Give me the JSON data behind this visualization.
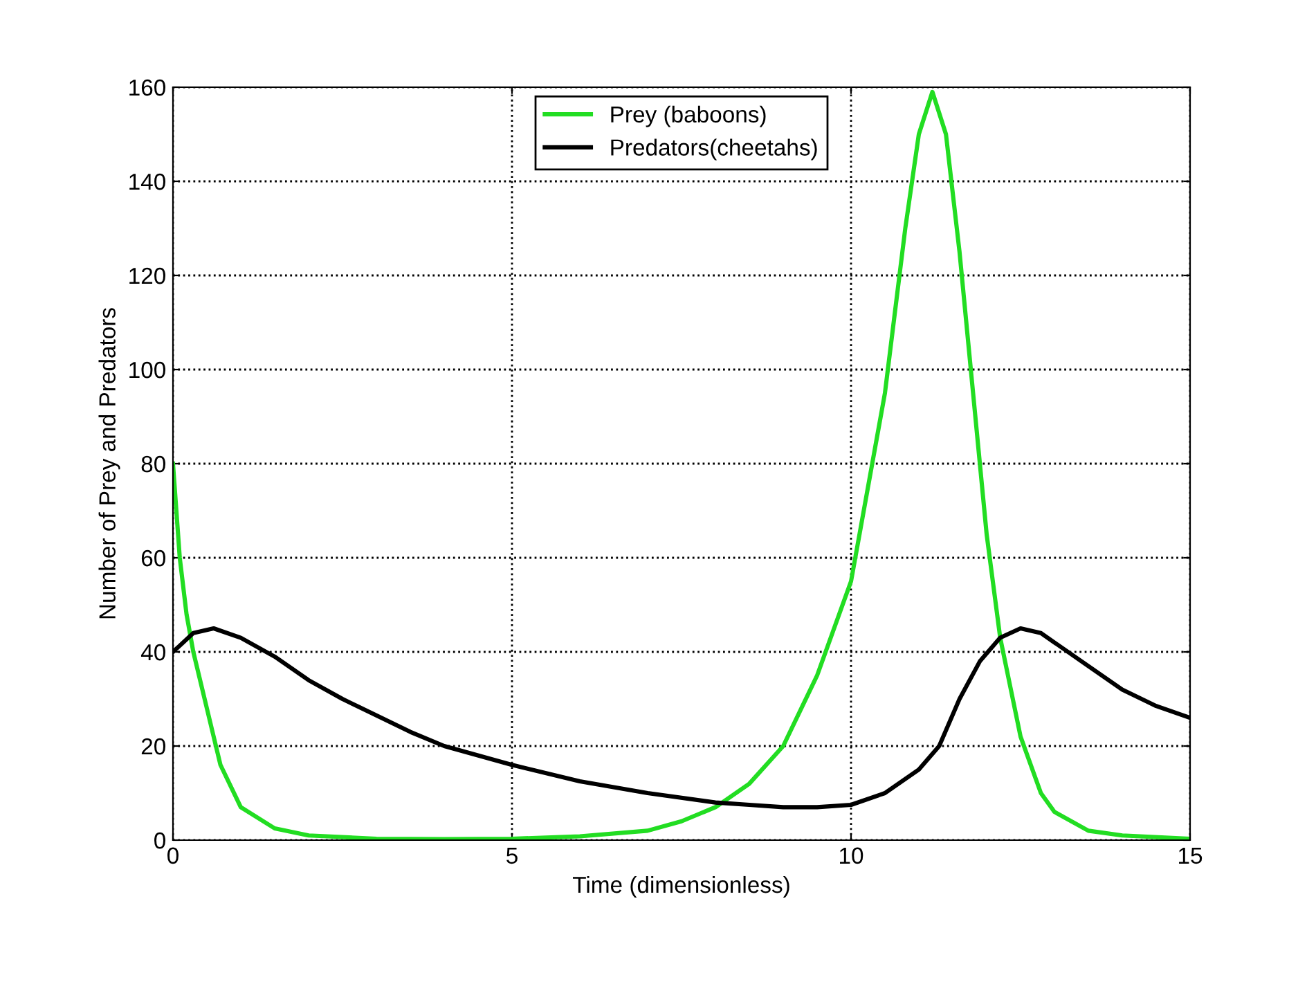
{
  "chart_data": {
    "type": "line",
    "xlabel": "Time (dimensionless)",
    "ylabel": "Number of Prey and Predators",
    "xlim": [
      0,
      15
    ],
    "ylim": [
      0,
      160
    ],
    "xticks": [
      0,
      5,
      10,
      15
    ],
    "yticks": [
      0,
      20,
      40,
      60,
      80,
      100,
      120,
      140,
      160
    ],
    "grid": true,
    "legend": "top",
    "line_style": "solid",
    "marker": "none",
    "series": [
      {
        "name": "Prey (baboons)",
        "color": "#22dd22",
        "x": [
          0,
          0.1,
          0.2,
          0.3,
          0.5,
          0.7,
          1,
          1.5,
          2,
          3,
          4,
          5,
          6,
          7,
          7.5,
          8,
          8.5,
          9,
          9.5,
          10,
          10.5,
          10.8,
          11,
          11.2,
          11.4,
          11.6,
          11.8,
          12,
          12.2,
          12.5,
          12.8,
          13,
          13.5,
          14,
          15
        ],
        "values": [
          80,
          60,
          48,
          40,
          28,
          16,
          7,
          2.5,
          1,
          0.3,
          0.2,
          0.3,
          0.8,
          2,
          4,
          7,
          12,
          20,
          35,
          55,
          95,
          130,
          150,
          159,
          150,
          125,
          95,
          65,
          43,
          22,
          10,
          6,
          2,
          1,
          0.3
        ]
      },
      {
        "name": "Predators(cheetahs)",
        "color": "#000000",
        "x": [
          0,
          0.3,
          0.6,
          1,
          1.5,
          2,
          2.5,
          3,
          3.5,
          4,
          5,
          6,
          7,
          8,
          8.5,
          9,
          9.5,
          10,
          10.5,
          11,
          11.3,
          11.6,
          11.9,
          12.2,
          12.5,
          12.8,
          13,
          13.5,
          14,
          14.5,
          15
        ],
        "values": [
          40,
          44,
          45,
          43,
          39,
          34,
          30,
          26.5,
          23,
          20,
          16,
          12.5,
          10,
          8,
          7.5,
          7,
          7,
          7.5,
          10,
          15,
          20,
          30,
          38,
          43,
          45,
          44,
          42,
          37,
          32,
          28.5,
          26
        ]
      }
    ]
  }
}
